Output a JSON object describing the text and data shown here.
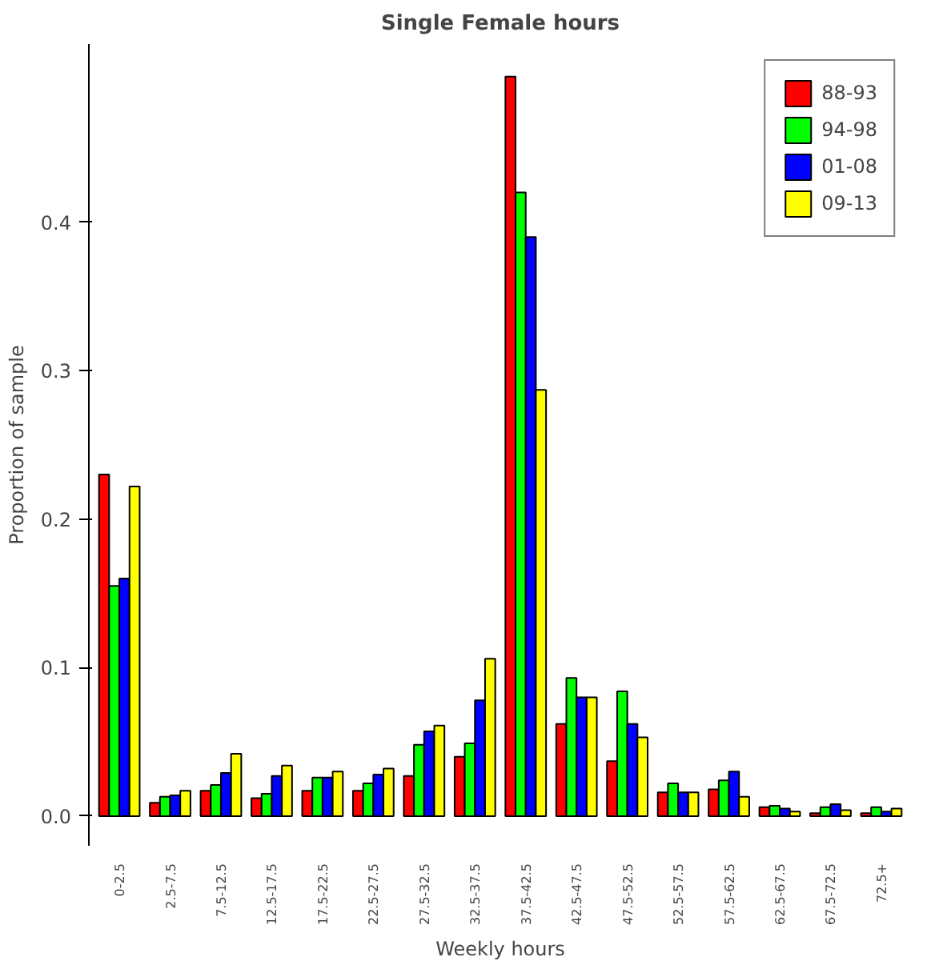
{
  "chart_data": {
    "type": "bar",
    "title": "Single Female hours",
    "xlabel": "Weekly hours",
    "ylabel": "Proportion of sample",
    "categories": [
      "0-2.5",
      "2.5-7.5",
      "7.5-12.5",
      "12.5-17.5",
      "17.5-22.5",
      "22.5-27.5",
      "27.5-32.5",
      "32.5-37.5",
      "37.5-42.5",
      "42.5-47.5",
      "47.5-52.5",
      "52.5-57.5",
      "57.5-62.5",
      "62.5-67.5",
      "67.5-72.5",
      "72.5+"
    ],
    "series": [
      {
        "name": "88-93",
        "color": "#ff0000",
        "values": [
          0.23,
          0.009,
          0.017,
          0.012,
          0.017,
          0.017,
          0.027,
          0.04,
          0.498,
          0.062,
          0.037,
          0.016,
          0.018,
          0.006,
          0.002,
          0.002
        ]
      },
      {
        "name": "94-98",
        "color": "#00ff00",
        "values": [
          0.155,
          0.013,
          0.021,
          0.015,
          0.026,
          0.022,
          0.048,
          0.049,
          0.42,
          0.093,
          0.084,
          0.022,
          0.024,
          0.007,
          0.006,
          0.006
        ]
      },
      {
        "name": "01-08",
        "color": "#0000ff",
        "values": [
          0.16,
          0.014,
          0.029,
          0.027,
          0.026,
          0.028,
          0.057,
          0.078,
          0.39,
          0.08,
          0.062,
          0.016,
          0.03,
          0.005,
          0.008,
          0.003
        ]
      },
      {
        "name": "09-13",
        "color": "#ffff00",
        "values": [
          0.222,
          0.017,
          0.042,
          0.034,
          0.03,
          0.032,
          0.061,
          0.106,
          0.287,
          0.08,
          0.053,
          0.016,
          0.013,
          0.003,
          0.004,
          0.005
        ]
      }
    ],
    "ylim": [
      -0.02,
      0.52
    ],
    "yticks": [
      {
        "value": 0,
        "label": "0.0"
      },
      {
        "value": 0.1,
        "label": "0.1"
      },
      {
        "value": 0.2,
        "label": "0.2"
      },
      {
        "value": 0.3,
        "label": "0.3"
      },
      {
        "value": 0.4,
        "label": "0.4"
      }
    ],
    "grid": false,
    "legend": "top right"
  }
}
